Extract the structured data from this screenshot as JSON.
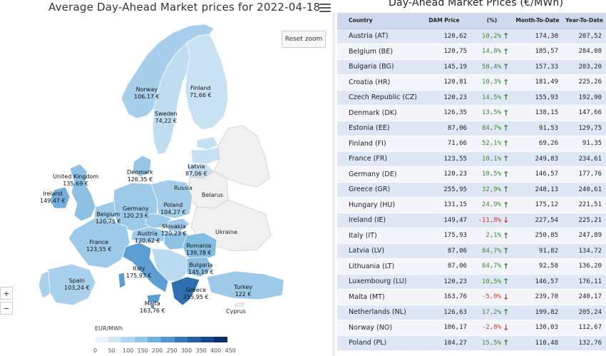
{
  "map": {
    "title": "Average Day-Ahead Market prices for 2022-04-18",
    "reset_zoom": "Reset zoom",
    "zoom_in": "+",
    "zoom_out": "−",
    "legend_title": "EUR/MWh",
    "legend_ticks": [
      "0",
      "50",
      "100",
      "150",
      "200",
      "250",
      "300",
      "350",
      "400",
      "450"
    ],
    "legend_colors": [
      "#e8f3fb",
      "#cfe6f5",
      "#b3d7ee",
      "#94c6e6",
      "#6fb0db",
      "#4f97cd",
      "#3779b8",
      "#245ea4",
      "#16468c",
      "#0e2f6e"
    ],
    "labels": {
      "norway": [
        "Norway",
        "106,17 €"
      ],
      "finland": [
        "Finland",
        "71,66 €"
      ],
      "sweden": [
        "Sweden",
        "74,22 €"
      ],
      "uk": [
        "United Kingdom",
        "135,69 €"
      ],
      "ireland": [
        "Ireland",
        "149,47 €"
      ],
      "denmark": [
        "Denmark",
        "126,35 €"
      ],
      "latvia": [
        "Latvia",
        "87,06 €"
      ],
      "russia": "Russia",
      "belarus": "Belarus",
      "germany": [
        "Germany",
        "120,23 €"
      ],
      "poland": [
        "Poland",
        "104,27 €"
      ],
      "belgium": [
        "Belgium",
        "120,75 €"
      ],
      "slovakia": [
        "Slovakia",
        "120,23 €"
      ],
      "ukraine": "Ukraine",
      "austria": [
        "Austria",
        "120,62 €"
      ],
      "france": [
        "France",
        "123,55 €"
      ],
      "romania": [
        "Romania",
        "139,78 €"
      ],
      "italy": [
        "Italy",
        "175,93 €"
      ],
      "bulgaria": [
        "Bulgaria",
        "145,19 €"
      ],
      "spain": [
        "Spain",
        "103,24 €"
      ],
      "turkey": [
        "Turkey",
        "122 €"
      ],
      "greece": [
        "Greece",
        "255,95 €"
      ],
      "malta": [
        "Malta",
        "163,76 €"
      ],
      "cyprus": "Cyprus"
    }
  },
  "table": {
    "title": "Day-Ahead Market Prices (€/MWh)",
    "headers": [
      "Country",
      "DAM Price",
      "(%)",
      "Month-To-Date",
      "Year-To-Date"
    ],
    "rows": [
      {
        "country": "Austria (AT)",
        "price": "120,62",
        "pct": "10,2%",
        "dir": "up",
        "mtd": "174,30",
        "ytd": "207,52"
      },
      {
        "country": "Belgium (BE)",
        "price": "120,75",
        "pct": "14,8%",
        "dir": "up",
        "mtd": "185,57",
        "ytd": "284,08"
      },
      {
        "country": "Bulgaria (BG)",
        "price": "145,19",
        "pct": "58,4%",
        "dir": "up",
        "mtd": "157,33",
        "ytd": "203,20"
      },
      {
        "country": "Croatia (HR)",
        "price": "120,81",
        "pct": "10,3%",
        "dir": "up",
        "mtd": "181,49",
        "ytd": "225,26"
      },
      {
        "country": "Czech Republic (CZ)",
        "price": "120,23",
        "pct": "14,5%",
        "dir": "up",
        "mtd": "155,93",
        "ytd": "192,90"
      },
      {
        "country": "Denmark (DK)",
        "price": "126,35",
        "pct": "13,5%",
        "dir": "up",
        "mtd": "138,15",
        "ytd": "147,66"
      },
      {
        "country": "Estonia (EE)",
        "price": "87,06",
        "pct": "84,7%",
        "dir": "up",
        "mtd": "91,53",
        "ytd": "129,75"
      },
      {
        "country": "Finland (FI)",
        "price": "71,66",
        "pct": "52,1%",
        "dir": "up",
        "mtd": "69,26",
        "ytd": "91,35"
      },
      {
        "country": "France (FR)",
        "price": "123,55",
        "pct": "10,1%",
        "dir": "up",
        "mtd": "249,83",
        "ytd": "234,61"
      },
      {
        "country": "Germany (DE)",
        "price": "120,23",
        "pct": "10,5%",
        "dir": "up",
        "mtd": "146,57",
        "ytd": "177,76"
      },
      {
        "country": "Greece (GR)",
        "price": "255,95",
        "pct": "32,9%",
        "dir": "up",
        "mtd": "248,13",
        "ytd": "240,61"
      },
      {
        "country": "Hungary (HU)",
        "price": "131,15",
        "pct": "24,9%",
        "dir": "up",
        "mtd": "175,12",
        "ytd": "221,51"
      },
      {
        "country": "Ireland (IE)",
        "price": "149,47",
        "pct": "-11,8%",
        "dir": "down",
        "mtd": "227,54",
        "ytd": "225,21"
      },
      {
        "country": "Italy (IT)",
        "price": "175,93",
        "pct": "2,1%",
        "dir": "up",
        "mtd": "250,85",
        "ytd": "247,89"
      },
      {
        "country": "Latvia (LV)",
        "price": "87,06",
        "pct": "84,7%",
        "dir": "up",
        "mtd": "91,82",
        "ytd": "134,72"
      },
      {
        "country": "Lithuania (LT)",
        "price": "87,06",
        "pct": "84,7%",
        "dir": "up",
        "mtd": "92,58",
        "ytd": "136,20"
      },
      {
        "country": "Luxembourg (LU)",
        "price": "120,23",
        "pct": "10,5%",
        "dir": "up",
        "mtd": "146,57",
        "ytd": "176,11"
      },
      {
        "country": "Malta (MT)",
        "price": "163,76",
        "pct": "-5,0%",
        "dir": "down",
        "mtd": "239,70",
        "ytd": "240,17"
      },
      {
        "country": "Netherlands (NL)",
        "price": "126,63",
        "pct": "17,2%",
        "dir": "up",
        "mtd": "199,82",
        "ytd": "205,24"
      },
      {
        "country": "Norway (NO)",
        "price": "106,17",
        "pct": "-2,8%",
        "dir": "down",
        "mtd": "130,03",
        "ytd": "112,67"
      },
      {
        "country": "Poland (PL)",
        "price": "104,27",
        "pct": "15,5%",
        "dir": "up",
        "mtd": "110,48",
        "ytd": "132,76"
      }
    ]
  }
}
